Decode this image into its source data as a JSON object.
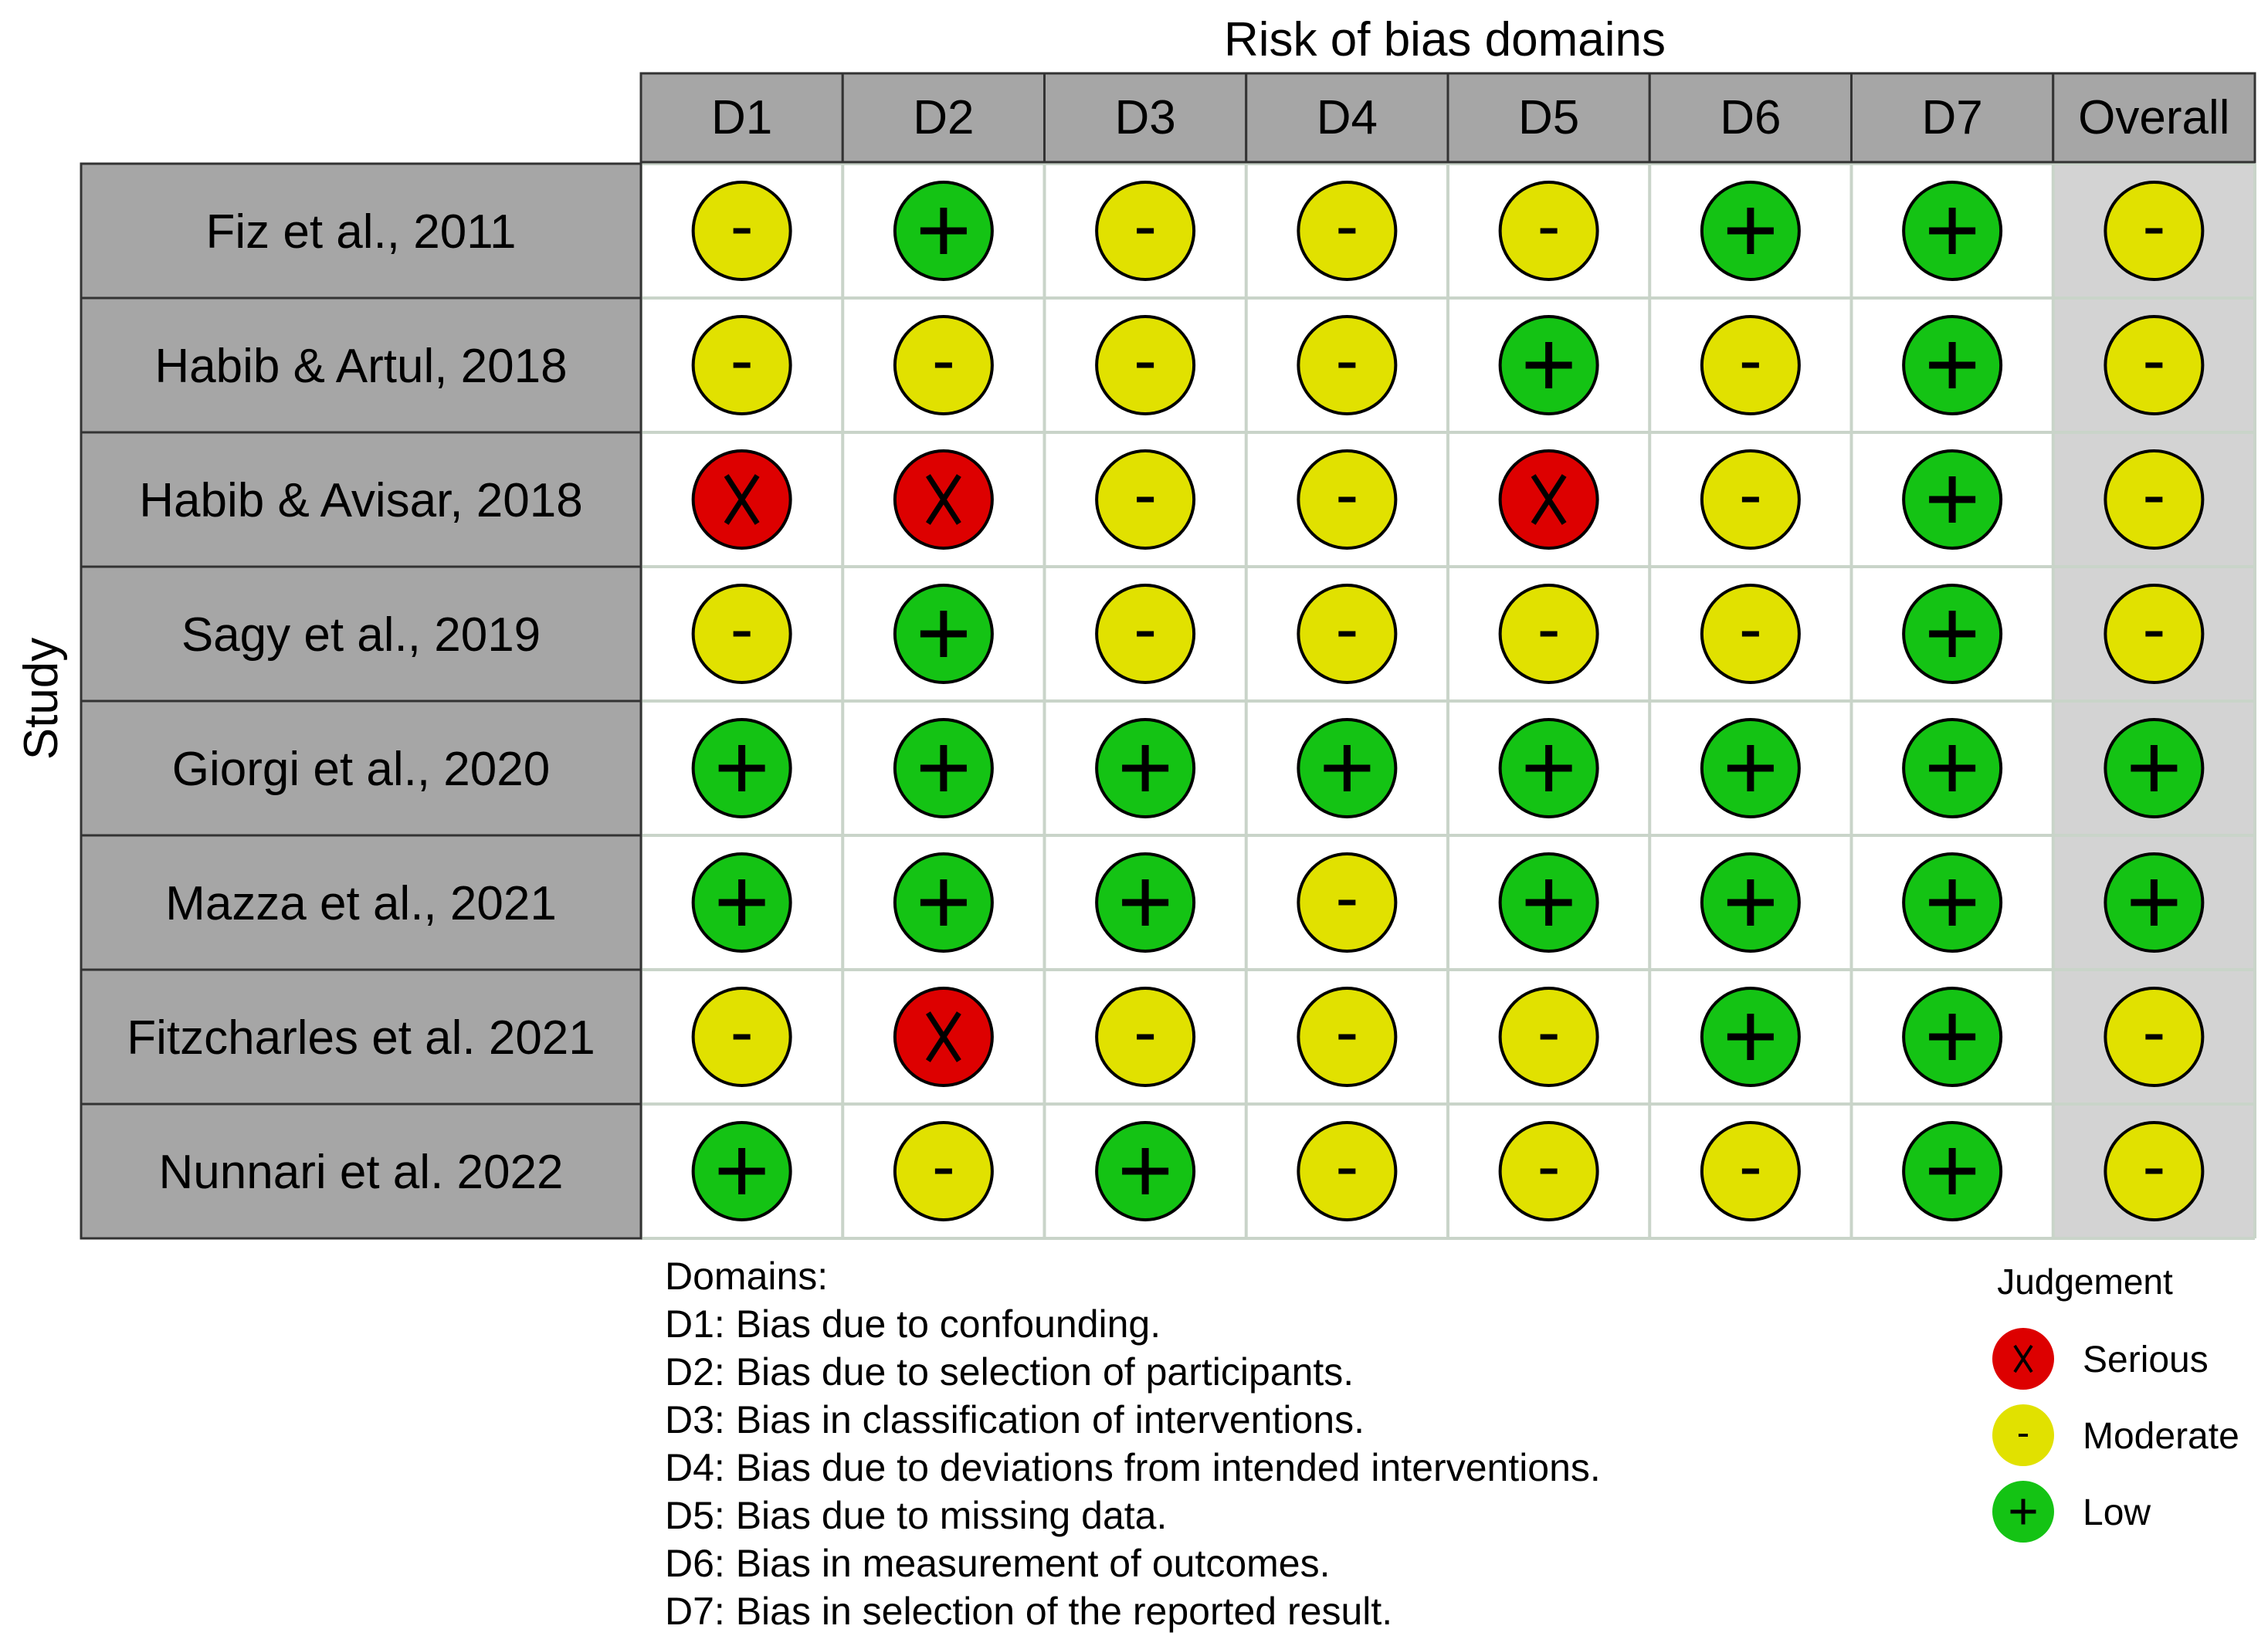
{
  "chart_data": {
    "type": "table",
    "title": "Risk of bias domains",
    "row_axis_label": "Study",
    "columns": [
      "D1",
      "D2",
      "D3",
      "D4",
      "D5",
      "D6",
      "D7",
      "Overall"
    ],
    "studies": [
      "Fiz et al., 2011",
      "Habib & Artul, 2018",
      "Habib & Avisar, 2018",
      "Sagy et al., 2019",
      "Giorgi et al., 2020",
      "Mazza et al., 2021",
      "Fitzcharles et al. 2021",
      "Nunnari et al. 2022"
    ],
    "judgements": [
      [
        "Moderate",
        "Low",
        "Moderate",
        "Moderate",
        "Moderate",
        "Low",
        "Low",
        "Moderate"
      ],
      [
        "Moderate",
        "Moderate",
        "Moderate",
        "Moderate",
        "Low",
        "Moderate",
        "Low",
        "Moderate"
      ],
      [
        "Serious",
        "Serious",
        "Moderate",
        "Moderate",
        "Serious",
        "Moderate",
        "Low",
        "Moderate"
      ],
      [
        "Moderate",
        "Low",
        "Moderate",
        "Moderate",
        "Moderate",
        "Moderate",
        "Low",
        "Moderate"
      ],
      [
        "Low",
        "Low",
        "Low",
        "Low",
        "Low",
        "Low",
        "Low",
        "Low"
      ],
      [
        "Low",
        "Low",
        "Low",
        "Moderate",
        "Low",
        "Low",
        "Low",
        "Low"
      ],
      [
        "Moderate",
        "Serious",
        "Moderate",
        "Moderate",
        "Moderate",
        "Low",
        "Low",
        "Moderate"
      ],
      [
        "Low",
        "Moderate",
        "Low",
        "Moderate",
        "Moderate",
        "Moderate",
        "Low",
        "Moderate"
      ]
    ],
    "symbols": {
      "Serious": "X",
      "Moderate": "-",
      "Low": "+"
    },
    "colors": {
      "Serious": "#dd0000",
      "Moderate": "#e1e100",
      "Low": "#14c314",
      "header_fill": "#a6a6a6",
      "overall_fill": "#d3d3d3",
      "grid": "#c9d4c9"
    },
    "domains_heading": "Domains:",
    "domain_descriptions": [
      "D1: Bias due to confounding.",
      "D2: Bias due to selection of participants.",
      "D3: Bias in classification of interventions.",
      "D4: Bias due to deviations from intended interventions.",
      "D5: Bias due to missing data.",
      "D6: Bias in measurement of outcomes.",
      "D7: Bias in selection of the reported result."
    ],
    "legend_title": "Judgement",
    "legend": [
      {
        "label": "Serious",
        "judgement": "Serious"
      },
      {
        "label": "Moderate",
        "judgement": "Moderate"
      },
      {
        "label": "Low",
        "judgement": "Low"
      }
    ]
  }
}
